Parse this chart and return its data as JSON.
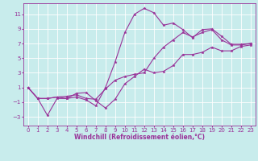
{
  "xlabel": "Windchill (Refroidissement éolien,°C)",
  "ylabel": "",
  "background_color": "#c8ecec",
  "line_color": "#993399",
  "xlim": [
    -0.5,
    23.5
  ],
  "ylim": [
    -4.2,
    12.5
  ],
  "xticks": [
    0,
    1,
    2,
    3,
    4,
    5,
    6,
    7,
    8,
    9,
    10,
    11,
    12,
    13,
    14,
    15,
    16,
    17,
    18,
    19,
    20,
    21,
    22,
    23
  ],
  "yticks": [
    -3,
    -1,
    1,
    3,
    5,
    7,
    9,
    11
  ],
  "series": [
    {
      "x": [
        0,
        1,
        2,
        3,
        4,
        5,
        6,
        7,
        8,
        9,
        10,
        11,
        12,
        13,
        14,
        15,
        16,
        17,
        18,
        19,
        20,
        21,
        22,
        23
      ],
      "y": [
        1.0,
        -0.5,
        -0.5,
        -0.3,
        -0.5,
        -0.3,
        -0.7,
        -1.5,
        1.0,
        4.5,
        8.5,
        11.0,
        11.8,
        11.2,
        9.5,
        9.8,
        8.9,
        7.8,
        8.9,
        9.0,
        8.0,
        6.9,
        6.9,
        7.0
      ]
    },
    {
      "x": [
        0,
        1,
        2,
        3,
        4,
        5,
        6,
        7,
        8,
        9,
        10,
        11,
        12,
        13,
        14,
        15,
        16,
        17,
        18,
        19,
        20,
        21,
        22,
        23
      ],
      "y": [
        1.0,
        -0.5,
        -0.5,
        -0.3,
        -0.2,
        0.0,
        -0.5,
        -0.6,
        0.8,
        2.0,
        2.5,
        2.8,
        3.0,
        5.0,
        6.5,
        7.5,
        8.5,
        7.9,
        8.5,
        8.9,
        7.5,
        6.8,
        6.8,
        7.0
      ]
    },
    {
      "x": [
        0,
        1,
        2,
        3,
        4,
        5,
        6,
        7,
        8,
        9,
        10,
        11,
        12,
        13,
        14,
        15,
        16,
        17,
        18,
        19,
        20,
        21,
        22,
        23
      ],
      "y": [
        1.0,
        -0.5,
        -2.8,
        -0.5,
        -0.5,
        0.2,
        0.3,
        -0.8,
        -1.8,
        -0.6,
        1.5,
        2.5,
        3.5,
        3.0,
        3.2,
        4.0,
        5.5,
        5.5,
        5.8,
        6.5,
        6.0,
        6.0,
        6.6,
        6.8
      ]
    }
  ],
  "tick_fontsize": 5,
  "xlabel_fontsize": 5.5,
  "linewidth": 0.8,
  "markersize": 2.5
}
